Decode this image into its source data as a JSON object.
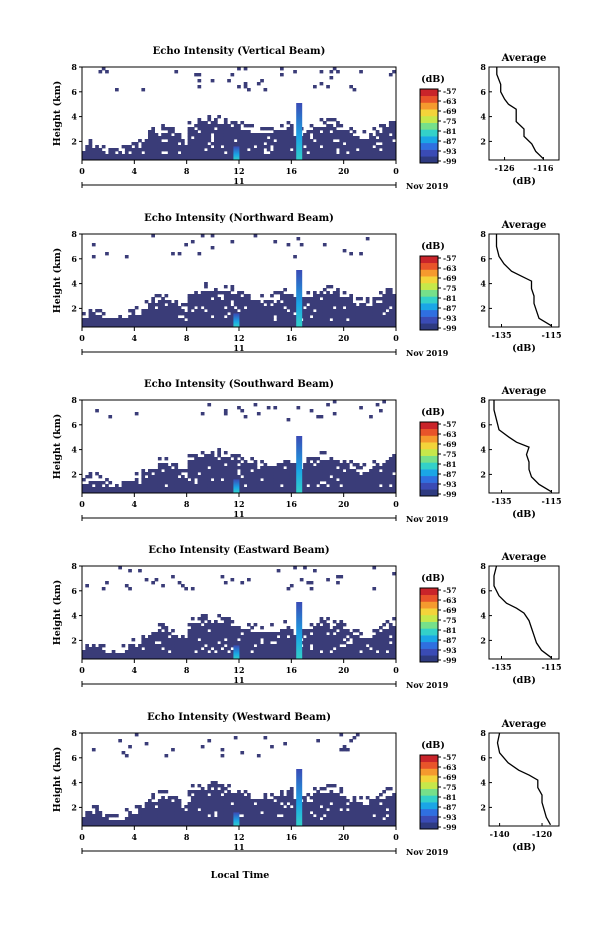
{
  "figure": {
    "x_axis_title": "Local Time",
    "colorbar_unit": "(dB)",
    "colorbar_ticks": [
      "-57",
      "-63",
      "-69",
      "-75",
      "-81",
      "-87",
      "-93",
      "-99"
    ],
    "colormap": [
      "#2e3a80",
      "#3a4bb5",
      "#2f6fe0",
      "#1aa6e6",
      "#33d1c9",
      "#76e08a",
      "#c6e84a",
      "#f3d43a",
      "#f59a2e",
      "#e8542a",
      "#c9242a"
    ],
    "background_color": "#3a3c78",
    "average_title": "Average",
    "average_xlabel": "(dB)",
    "month_label": "Nov 2019",
    "date_label": "11",
    "x_ticks": [
      "0",
      "4",
      "8",
      "12",
      "16",
      "20",
      "0"
    ]
  },
  "chart_data": [
    {
      "type": "heatmap",
      "title": "Echo Intensity (Vertical Beam)",
      "ylabel": "Height (km)",
      "y_ticks": [
        "2",
        "4",
        "6",
        "8"
      ],
      "xlim_hours": [
        0,
        24
      ],
      "ylim_km": [
        0.5,
        8
      ],
      "profile": {
        "type": "line",
        "xlim": [
          -130,
          -112
        ],
        "x_ticks": [
          "-126",
          "-116"
        ],
        "y_ticks": [
          "2",
          "4",
          "6",
          "8"
        ],
        "points": [
          [
            -116,
            0.6
          ],
          [
            -118,
            1.2
          ],
          [
            -119,
            1.8
          ],
          [
            -121,
            2.4
          ],
          [
            -121,
            3.0
          ],
          [
            -123,
            3.6
          ],
          [
            -123,
            4.2
          ],
          [
            -123,
            4.6
          ],
          [
            -125,
            5.0
          ],
          [
            -126,
            5.4
          ],
          [
            -127,
            6.0
          ],
          [
            -127,
            6.6
          ],
          [
            -128,
            7.4
          ],
          [
            -128,
            8.0
          ]
        ]
      }
    },
    {
      "type": "heatmap",
      "title": "Echo Intensity (Northward Beam)",
      "ylabel": "Height (km)",
      "y_ticks": [
        "2",
        "4",
        "6",
        "8"
      ],
      "xlim_hours": [
        0,
        24
      ],
      "ylim_km": [
        0.5,
        8
      ],
      "profile": {
        "type": "line",
        "xlim": [
          -140,
          -112
        ],
        "x_ticks": [
          "-135",
          "-115"
        ],
        "y_ticks": [
          "2",
          "4",
          "6",
          "8"
        ],
        "points": [
          [
            -115,
            0.6
          ],
          [
            -120,
            1.2
          ],
          [
            -121,
            1.8
          ],
          [
            -122,
            2.4
          ],
          [
            -122,
            3.0
          ],
          [
            -123,
            3.6
          ],
          [
            -123,
            4.2
          ],
          [
            -127,
            4.6
          ],
          [
            -131,
            5.0
          ],
          [
            -134,
            5.6
          ],
          [
            -136,
            6.2
          ],
          [
            -137,
            7.0
          ],
          [
            -137,
            8.0
          ]
        ]
      }
    },
    {
      "type": "heatmap",
      "title": "Echo Intensity (Southward Beam)",
      "ylabel": "Height (km)",
      "y_ticks": [
        "2",
        "4",
        "6",
        "8"
      ],
      "xlim_hours": [
        0,
        24
      ],
      "ylim_km": [
        0.5,
        8
      ],
      "profile": {
        "type": "line",
        "xlim": [
          -140,
          -112
        ],
        "x_ticks": [
          "-135",
          "-115"
        ],
        "y_ticks": [
          "2",
          "4",
          "6",
          "8"
        ],
        "points": [
          [
            -115,
            0.6
          ],
          [
            -120,
            1.2
          ],
          [
            -123,
            1.8
          ],
          [
            -124,
            2.4
          ],
          [
            -124,
            3.0
          ],
          [
            -125,
            3.6
          ],
          [
            -124,
            4.2
          ],
          [
            -129,
            4.6
          ],
          [
            -132,
            5.0
          ],
          [
            -136,
            5.6
          ],
          [
            -137,
            6.4
          ],
          [
            -138,
            7.2
          ],
          [
            -138,
            8.0
          ]
        ]
      }
    },
    {
      "type": "heatmap",
      "title": "Echo Intensity (Eastward Beam)",
      "ylabel": "Height (km)",
      "y_ticks": [
        "2",
        "4",
        "6",
        "8"
      ],
      "xlim_hours": [
        0,
        24
      ],
      "ylim_km": [
        0.5,
        8
      ],
      "profile": {
        "type": "line",
        "xlim": [
          -140,
          -112
        ],
        "x_ticks": [
          "-135",
          "-115"
        ],
        "y_ticks": [
          "2",
          "4",
          "6",
          "8"
        ],
        "points": [
          [
            -115,
            0.6
          ],
          [
            -119,
            1.2
          ],
          [
            -121,
            1.8
          ],
          [
            -122,
            2.4
          ],
          [
            -123,
            3.0
          ],
          [
            -124,
            3.6
          ],
          [
            -126,
            4.2
          ],
          [
            -129,
            4.6
          ],
          [
            -133,
            5.0
          ],
          [
            -136,
            5.6
          ],
          [
            -138,
            6.4
          ],
          [
            -138,
            7.2
          ],
          [
            -137,
            8.0
          ]
        ]
      }
    },
    {
      "type": "heatmap",
      "title": "Echo Intensity (Westward Beam)",
      "ylabel": "Height (km)",
      "y_ticks": [
        "2",
        "4",
        "6",
        "8"
      ],
      "xlim_hours": [
        0,
        24
      ],
      "ylim_km": [
        0.5,
        8
      ],
      "profile": {
        "type": "line",
        "xlim": [
          -145,
          -112
        ],
        "x_ticks": [
          "-140",
          "-120"
        ],
        "y_ticks": [
          "2",
          "4",
          "6",
          "8"
        ],
        "points": [
          [
            -116,
            0.6
          ],
          [
            -118,
            1.2
          ],
          [
            -119,
            1.8
          ],
          [
            -120,
            2.4
          ],
          [
            -120,
            3.0
          ],
          [
            -122,
            3.6
          ],
          [
            -122,
            4.2
          ],
          [
            -126,
            4.6
          ],
          [
            -131,
            5.0
          ],
          [
            -136,
            5.6
          ],
          [
            -140,
            6.4
          ],
          [
            -141,
            7.2
          ],
          [
            -140,
            8.0
          ]
        ]
      }
    }
  ]
}
